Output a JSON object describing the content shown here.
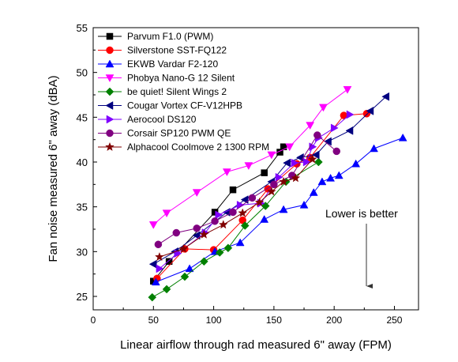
{
  "chart_data": {
    "type": "line",
    "xlabel": "Linear airflow through rad measured 6\" away (FPM)",
    "ylabel": "Fan noise measured 6\" away (dBA)",
    "xlim": [
      0,
      270
    ],
    "ylim": [
      23.5,
      55
    ],
    "xticks": [
      0,
      50,
      100,
      150,
      200,
      250
    ],
    "yticks": [
      25,
      30,
      35,
      40,
      45,
      50,
      55
    ],
    "grid": false,
    "legend_position": "top-left",
    "annotation": "Lower is better",
    "series": [
      {
        "name": "Parvum F1.0 (PWM)",
        "color": "#000000",
        "marker": "square",
        "points": [
          [
            50,
            26.7
          ],
          [
            63,
            28.9
          ],
          [
            101,
            34.4
          ],
          [
            116,
            36.9
          ],
          [
            142,
            38.8
          ],
          [
            155,
            41.1
          ],
          [
            158,
            41.7
          ]
        ]
      },
      {
        "name": "Silverstone SST-FQ122",
        "color": "#ff0000",
        "marker": "circle",
        "points": [
          [
            53,
            27.0
          ],
          [
            76,
            30.3
          ],
          [
            100,
            30.2
          ],
          [
            124,
            33.5
          ],
          [
            145,
            37.0
          ],
          [
            169,
            39.8
          ],
          [
            180,
            40.5
          ],
          [
            208,
            45.2
          ],
          [
            227,
            45.4
          ]
        ]
      },
      {
        "name": "EKWB Vardar F2-120",
        "color": "#0000ff",
        "marker": "triangle-up",
        "points": [
          [
            52,
            26.6
          ],
          [
            80,
            28.1
          ],
          [
            101,
            30.0
          ],
          [
            122,
            31.0
          ],
          [
            142,
            33.6
          ],
          [
            158,
            34.7
          ],
          [
            175,
            35.2
          ],
          [
            183,
            36.6
          ],
          [
            190,
            37.8
          ],
          [
            197,
            38.2
          ],
          [
            204,
            38.5
          ],
          [
            218,
            39.8
          ],
          [
            233,
            41.5
          ],
          [
            257,
            42.7
          ]
        ]
      },
      {
        "name": "Phobya Nano-G 12 Silent",
        "color": "#ff00ff",
        "marker": "triangle-down",
        "points": [
          [
            50,
            33.0
          ],
          [
            61,
            34.3
          ],
          [
            86,
            36.6
          ],
          [
            111,
            38.9
          ],
          [
            129,
            39.6
          ],
          [
            148,
            40.8
          ],
          [
            163,
            41.7
          ],
          [
            180,
            44.1
          ],
          [
            191,
            46.1
          ],
          [
            211,
            48.1
          ]
        ]
      },
      {
        "name": "be quiet! Silent Wings 2",
        "color": "#008000",
        "marker": "diamond",
        "points": [
          [
            49,
            24.9
          ],
          [
            61,
            25.8
          ],
          [
            76,
            27.2
          ],
          [
            92,
            28.9
          ],
          [
            105,
            29.9
          ],
          [
            112,
            30.4
          ],
          [
            126,
            32.9
          ],
          [
            143,
            35.1
          ],
          [
            160,
            37.8
          ],
          [
            187,
            40.0
          ]
        ]
      },
      {
        "name": "Cougar Vortex CF-V12HPB",
        "color": "#000080",
        "marker": "triangle-left",
        "points": [
          [
            50,
            28.6
          ],
          [
            68,
            30.0
          ],
          [
            86,
            31.8
          ],
          [
            111,
            34.4
          ],
          [
            126,
            35.8
          ],
          [
            148,
            37.8
          ],
          [
            161,
            39.9
          ],
          [
            172,
            40.5
          ],
          [
            185,
            40.8
          ],
          [
            195,
            42.3
          ],
          [
            213,
            43.5
          ],
          [
            230,
            45.7
          ],
          [
            243,
            47.3
          ]
        ]
      },
      {
        "name": "Aerocool DS120",
        "color": "#8000ff",
        "marker": "triangle-right",
        "points": [
          [
            55,
            28.1
          ],
          [
            70,
            29.8
          ],
          [
            93,
            32.1
          ],
          [
            104,
            34.1
          ],
          [
            122,
            35.2
          ],
          [
            139,
            35.4
          ],
          [
            154,
            38.3
          ],
          [
            167,
            39.9
          ],
          [
            177,
            40.0
          ],
          [
            182,
            41.7
          ],
          [
            187,
            42.7
          ],
          [
            200,
            43.8
          ],
          [
            213,
            45.3
          ]
        ]
      },
      {
        "name": "Corsair SP120 PWM QE",
        "color": "#800080",
        "marker": "circle",
        "points": [
          [
            54,
            30.8
          ],
          [
            69,
            32.1
          ],
          [
            86,
            32.6
          ],
          [
            101,
            33.4
          ],
          [
            116,
            34.4
          ],
          [
            132,
            36.0
          ],
          [
            150,
            37.5
          ],
          [
            165,
            38.5
          ],
          [
            186,
            43.0
          ],
          [
            202,
            41.2
          ]
        ]
      },
      {
        "name": "Alphacool Coolmove 2 1300 RPM",
        "color": "#800000",
        "marker": "star",
        "points": [
          [
            55,
            29.4
          ],
          [
            75,
            30.3
          ],
          [
            92,
            31.9
          ],
          [
            108,
            33.0
          ],
          [
            124,
            34.3
          ],
          [
            138,
            35.5
          ],
          [
            148,
            36.7
          ],
          [
            158,
            37.8
          ],
          [
            168,
            38.2
          ],
          [
            182,
            40.3
          ]
        ]
      }
    ]
  }
}
